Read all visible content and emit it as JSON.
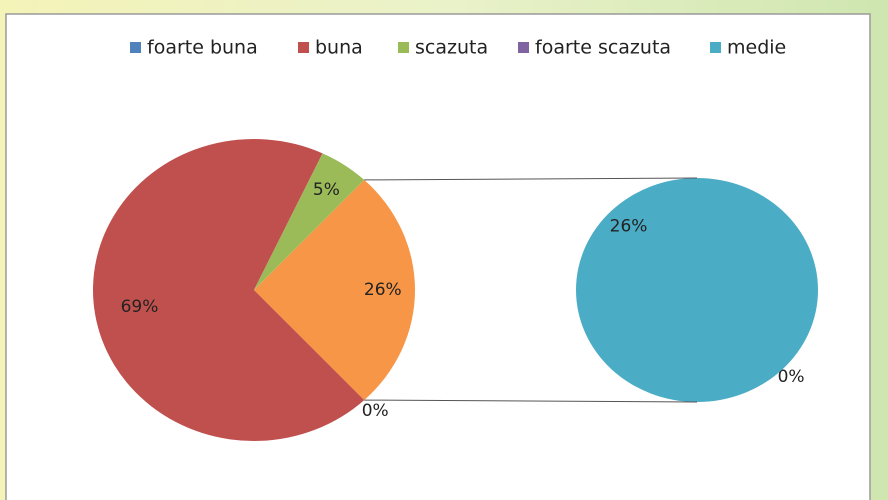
{
  "chart_data": {
    "type": "pie-of-pie",
    "pie": {
      "categories": [
        "foarte buna",
        "buna",
        "scazuta"
      ],
      "values": [
        0,
        69,
        5
      ],
      "value_labels": [
        "0%",
        "69%",
        "5%"
      ],
      "colors": [
        "#4f81bd",
        "#c0504d",
        "#9bbb59"
      ]
    },
    "split": {
      "value": 26,
      "label": "26%",
      "color": "#f79646"
    },
    "second_pie": {
      "categories": [
        "foarte scazuta",
        "medie"
      ],
      "values": [
        0,
        26
      ],
      "value_labels": [
        "0%",
        "26%"
      ],
      "colors": [
        "#8064a2",
        "#4bacc6"
      ]
    }
  }
}
